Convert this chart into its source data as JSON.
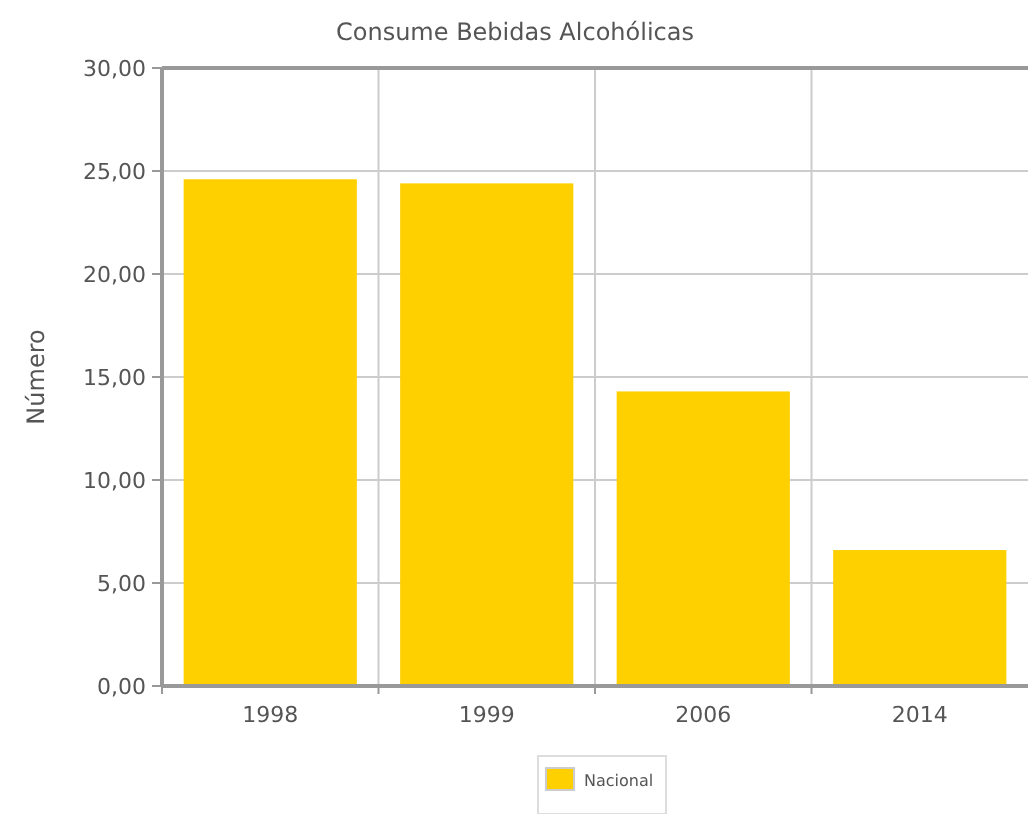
{
  "chart_data": {
    "type": "bar",
    "title": "Consume Bebidas Alcohólicas",
    "ylabel": "Número",
    "categories": [
      "1998",
      "1999",
      "2006",
      "2014"
    ],
    "series": [
      {
        "name": "Nacional",
        "color": "#ffd000",
        "values": [
          24.6,
          24.4,
          14.3,
          6.6
        ]
      }
    ],
    "ylim": [
      0,
      30
    ],
    "yticks": [
      {
        "value": 0,
        "label": "0,00"
      },
      {
        "value": 5,
        "label": "5,00"
      },
      {
        "value": 10,
        "label": "10,00"
      },
      {
        "value": 15,
        "label": "15,00"
      },
      {
        "value": 20,
        "label": "20,00"
      },
      {
        "value": 25,
        "label": "25,00"
      },
      {
        "value": 30,
        "label": "30,00"
      }
    ],
    "grid": true,
    "legend": "bottom"
  }
}
